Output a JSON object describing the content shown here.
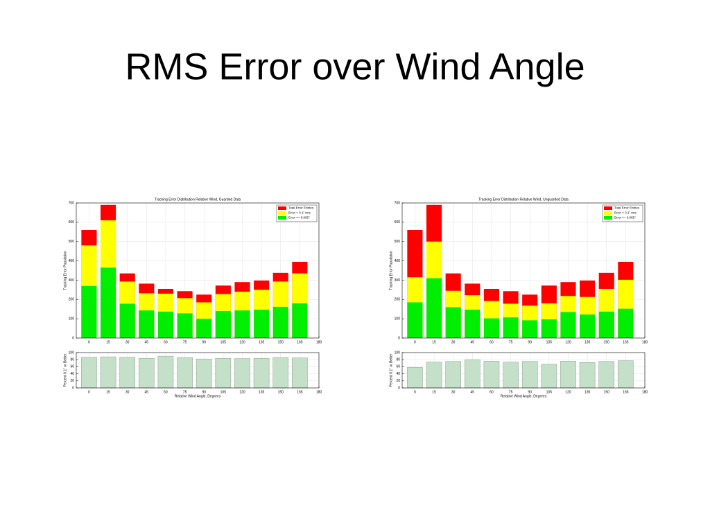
{
  "title": "RMS Error over Wind Angle",
  "chart_data": [
    {
      "type": "bar",
      "title": "Tracking Error Distribution Relative Wind, Guarded Data",
      "ylabel": "Tracking Error Population",
      "x": [
        0,
        15,
        30,
        45,
        60,
        75,
        90,
        105,
        120,
        135,
        150,
        165
      ],
      "series": [
        {
          "name": "Total Error Entries",
          "color": "#ff0000",
          "values": [
            560,
            690,
            335,
            282,
            255,
            243,
            225,
            272,
            290,
            298,
            338,
            395
          ]
        },
        {
          "name": "Error < 0.1\" rms",
          "color": "#ffff00",
          "values": [
            480,
            610,
            293,
            232,
            230,
            207,
            185,
            228,
            240,
            250,
            293,
            335
          ]
        },
        {
          "name": "Error <= 0.065\"",
          "color": "#00ee00",
          "values": [
            270,
            365,
            178,
            143,
            137,
            128,
            100,
            140,
            143,
            147,
            162,
            180
          ]
        }
      ],
      "xlim": [
        -10,
        180
      ],
      "xticks": [
        0,
        15,
        30,
        45,
        60,
        75,
        90,
        105,
        120,
        135,
        150,
        165,
        180
      ],
      "ylim": [
        0,
        700
      ],
      "yticks": [
        0,
        100,
        200,
        300,
        400,
        500,
        600,
        700
      ],
      "grid": true,
      "legend": "upper right"
    },
    {
      "type": "bar",
      "ylabel": "Percent 0.1\" or Better",
      "xlabel": "Relative Wind Angle, Degrees",
      "x": [
        0,
        15,
        30,
        45,
        60,
        75,
        90,
        105,
        120,
        135,
        150,
        165
      ],
      "series": [
        {
          "color": "#c5e0c8",
          "values": [
            87,
            88,
            87,
            84,
            90,
            86,
            82,
            84,
            83,
            84,
            86,
            85
          ]
        }
      ],
      "xlim": [
        -10,
        180
      ],
      "xticks": [
        0,
        15,
        30,
        45,
        60,
        75,
        90,
        105,
        120,
        135,
        150,
        165,
        180
      ],
      "ylim": [
        0,
        100
      ],
      "yticks": [
        0,
        20,
        40,
        60,
        80,
        100
      ],
      "grid": true
    },
    {
      "type": "bar",
      "title": "Tracking Error Distribution Relative Wind, Unguarded Data",
      "ylabel": "Tracking Error Population",
      "x": [
        0,
        15,
        30,
        45,
        60,
        75,
        90,
        105,
        120,
        135,
        150,
        165
      ],
      "series": [
        {
          "name": "Total Error Entries",
          "color": "#ff0000",
          "values": [
            560,
            690,
            335,
            282,
            255,
            243,
            225,
            272,
            290,
            298,
            338,
            395
          ]
        },
        {
          "name": "Error < 0.1\" rms",
          "color": "#ffff00",
          "values": [
            315,
            500,
            245,
            222,
            192,
            178,
            168,
            180,
            218,
            213,
            255,
            302
          ]
        },
        {
          "name": "Error <= 0.065\"",
          "color": "#00ee00",
          "values": [
            185,
            310,
            160,
            147,
            102,
            107,
            92,
            97,
            135,
            122,
            137,
            152
          ]
        }
      ],
      "xlim": [
        -10,
        180
      ],
      "xticks": [
        0,
        15,
        30,
        45,
        60,
        75,
        90,
        105,
        120,
        135,
        150,
        165,
        180
      ],
      "ylim": [
        0,
        700
      ],
      "yticks": [
        0,
        100,
        200,
        300,
        400,
        500,
        600,
        700
      ],
      "grid": true,
      "legend": "upper right"
    },
    {
      "type": "bar",
      "ylabel": "Percent 0.1\" or Better",
      "xlabel": "Relative Wind Angle, Degrees",
      "x": [
        0,
        15,
        30,
        45,
        60,
        75,
        90,
        105,
        120,
        135,
        150,
        165
      ],
      "series": [
        {
          "color": "#c5e0c8",
          "values": [
            58,
            73,
            75,
            80,
            76,
            73,
            75,
            67,
            76,
            72,
            75,
            77
          ]
        }
      ],
      "xlim": [
        -10,
        180
      ],
      "xticks": [
        0,
        15,
        30,
        45,
        60,
        75,
        90,
        105,
        120,
        135,
        150,
        165,
        180
      ],
      "ylim": [
        0,
        100
      ],
      "yticks": [
        0,
        20,
        40,
        60,
        80,
        100
      ],
      "grid": true
    }
  ]
}
